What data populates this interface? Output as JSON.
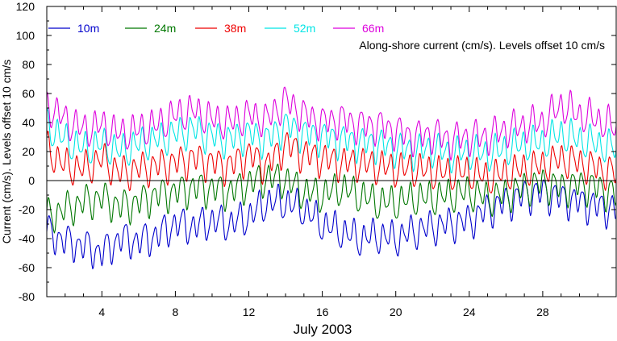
{
  "chart_data": {
    "type": "line",
    "annotation": "Along-shore current (cm/s). Levels offset 10 cm/s",
    "xlabel": "July 2003",
    "ylabel": "Current (cm/s). Levels offset 10 cm/s",
    "xlim": [
      1,
      32
    ],
    "ylim": [
      -80,
      120
    ],
    "x_ticks": [
      4,
      8,
      12,
      16,
      20,
      24,
      28
    ],
    "y_ticks": [
      -80,
      -60,
      -40,
      -20,
      0,
      20,
      40,
      60,
      80,
      100,
      120
    ],
    "zero_line": 0,
    "grid": false,
    "legend_position": "top-left",
    "x_points": [
      1,
      2,
      3,
      4,
      5,
      6,
      7,
      8,
      9,
      10,
      11,
      12,
      13,
      14,
      15,
      16,
      17,
      18,
      19,
      20,
      21,
      22,
      23,
      24,
      25,
      26,
      27,
      28,
      29,
      30,
      31,
      32
    ],
    "series": [
      {
        "name": "10m",
        "color": "#0000cc",
        "values": [
          -35,
          -42,
          -45,
          -50,
          -40,
          -42,
          -38,
          -30,
          -32,
          -28,
          -30,
          -25,
          -15,
          -15,
          -20,
          -30,
          -35,
          -40,
          -38,
          -40,
          -35,
          -32,
          -30,
          -28,
          -20,
          -15,
          -10,
          -8,
          -12,
          -15,
          -18,
          -20
        ]
      },
      {
        "name": "24m",
        "color": "#007700",
        "values": [
          -25,
          -20,
          -15,
          -12,
          -18,
          -15,
          -10,
          -8,
          -5,
          -6,
          -8,
          -2,
          2,
          0,
          -8,
          -10,
          -5,
          -10,
          -15,
          -15,
          -12,
          -12,
          -10,
          -8,
          -12,
          -10,
          -5,
          -2,
          -5,
          -3,
          -5,
          -10
        ]
      },
      {
        "name": "38m",
        "color": "#ee0000",
        "values": [
          22,
          10,
          8,
          15,
          5,
          8,
          10,
          12,
          15,
          12,
          10,
          18,
          10,
          25,
          18,
          15,
          12,
          12,
          10,
          8,
          8,
          6,
          5,
          6,
          2,
          5,
          8,
          10,
          15,
          12,
          8,
          5
        ]
      },
      {
        "name": "52m",
        "color": "#00e5e5",
        "values": [
          38,
          28,
          22,
          25,
          20,
          25,
          28,
          32,
          35,
          30,
          28,
          32,
          28,
          38,
          32,
          30,
          28,
          26,
          25,
          22,
          20,
          22,
          18,
          20,
          18,
          22,
          25,
          26,
          32,
          28,
          25,
          22
        ]
      },
      {
        "name": "66m",
        "color": "#dd00dd",
        "values": [
          52,
          42,
          35,
          38,
          32,
          35,
          38,
          45,
          48,
          42,
          40,
          45,
          42,
          55,
          45,
          40,
          42,
          38,
          38,
          34,
          30,
          32,
          28,
          30,
          30,
          35,
          38,
          40,
          52,
          45,
          42,
          36
        ]
      }
    ]
  }
}
